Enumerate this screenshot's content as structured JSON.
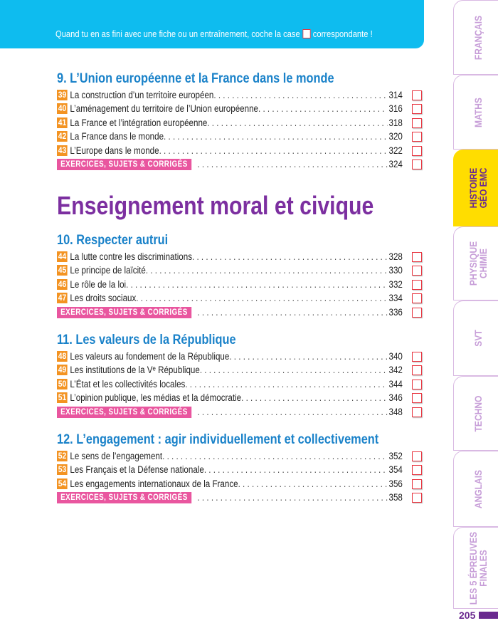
{
  "banner": {
    "before": "Quand tu en as fini avec une fiche ou un entraînement, coche la case",
    "after": "correspondante !"
  },
  "big_title": "Enseignement moral et civique",
  "sections": [
    {
      "title": "9. L’Union européenne et la France dans le monde",
      "items": [
        {
          "num": "39",
          "label": "La construction d’un territoire européen",
          "page": "314"
        },
        {
          "num": "40",
          "label": "L’aménagement du territoire de l’Union européenne",
          "page": "316"
        },
        {
          "num": "41",
          "label": "La France et l’intégration européenne",
          "page": "318"
        },
        {
          "num": "42",
          "label": "La France dans le monde",
          "page": "320"
        },
        {
          "num": "43",
          "label": "L’Europe dans le monde",
          "page": "322"
        }
      ],
      "exercises": {
        "label": "EXERCICES, SUJETS & CORRIGÉS",
        "page": "324"
      }
    },
    {
      "title": "10. Respecter autrui",
      "items": [
        {
          "num": "44",
          "label": "La lutte contre les discriminations",
          "page": "328"
        },
        {
          "num": "45",
          "label": "Le principe de laïcité",
          "page": "330"
        },
        {
          "num": "46",
          "label": "Le rôle de la loi",
          "page": "332"
        },
        {
          "num": "47",
          "label": "Les droits sociaux",
          "page": "334"
        }
      ],
      "exercises": {
        "label": "EXERCICES, SUJETS & CORRIGÉS",
        "page": "336"
      }
    },
    {
      "title": "11. Les valeurs de la République",
      "items": [
        {
          "num": "48",
          "label": "Les valeurs au fondement de la République",
          "page": "340"
        },
        {
          "num": "49",
          "label": "Les institutions de la Vᵉ République",
          "page": "342"
        },
        {
          "num": "50",
          "label": "L’État et les collectivités locales",
          "page": "344"
        },
        {
          "num": "51",
          "label": "L’opinion publique, les médias et la démocratie",
          "page": "346"
        }
      ],
      "exercises": {
        "label": "EXERCICES, SUJETS & CORRIGÉS",
        "page": "348"
      }
    },
    {
      "title": "12. L’engagement : agir individuellement et collectivement",
      "items": [
        {
          "num": "52",
          "label": "Le sens de l’engagement",
          "page": "352"
        },
        {
          "num": "53",
          "label": "Les Français et la Défense nationale",
          "page": "354"
        },
        {
          "num": "54",
          "label": "Les engagements internationaux de la France",
          "page": "356"
        }
      ],
      "exercises": {
        "label": "EXERCICES, SUJETS & CORRIGÉS",
        "page": "358"
      }
    }
  ],
  "tabs": [
    {
      "label": "FRANÇAIS",
      "active": false
    },
    {
      "label": "MATHS",
      "active": false
    },
    {
      "label": "HISTOIRE\nGÉO EMC",
      "active": true
    },
    {
      "label": "PHYSIQUE\nCHIMIE",
      "active": false
    },
    {
      "label": "SVT",
      "active": false
    },
    {
      "label": "TECHNO",
      "active": false
    },
    {
      "label": "ANGLAIS",
      "active": false
    },
    {
      "label": "LES 5 ÉPREUVES\nFINALES",
      "active": false
    }
  ],
  "page_number": "205",
  "colors": {
    "banner": "#0ebcef",
    "section_title": "#1a82c9",
    "big_title": "#7c2fa0",
    "number_badge": "#f39322",
    "exercises_badge": "#e9569f",
    "checkbox": "#e8343f",
    "active_tab": "#ffdd00"
  }
}
